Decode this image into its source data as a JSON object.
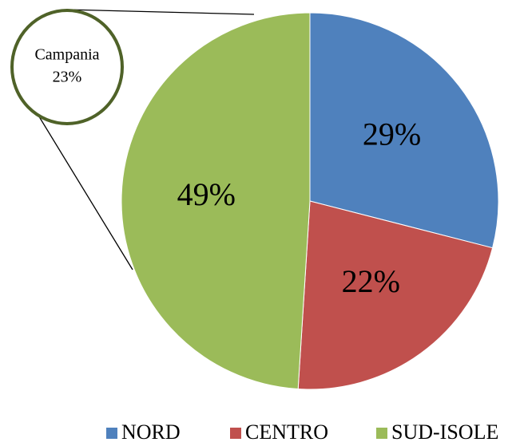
{
  "chart_data": {
    "type": "pie",
    "categories": [
      "NORD",
      "CENTRO",
      "SUD-ISOLE"
    ],
    "values": [
      29,
      22,
      49
    ],
    "value_labels": [
      "29%",
      "22%",
      "49%"
    ],
    "colors": [
      "#4f81bd",
      "#c0504d",
      "#9bbb59"
    ],
    "annotation": {
      "label": "Campania",
      "value_label": "23%"
    },
    "legend": "bottom"
  }
}
